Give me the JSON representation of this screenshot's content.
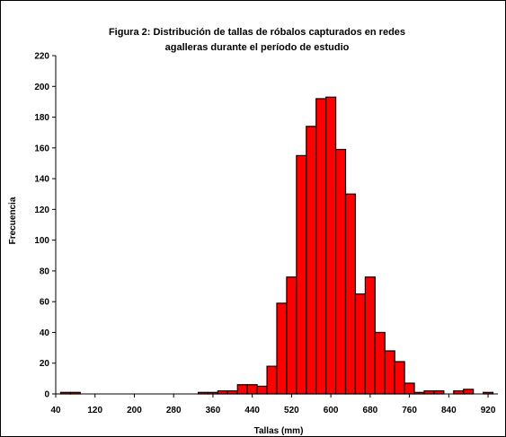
{
  "chart_data": {
    "type": "bar",
    "title_lines": [
      "Figura 2: Distribución de tallas de róbalos capturados en redes",
      "agalleras durante el período de estudio"
    ],
    "xlabel": "Tallas (mm)",
    "ylabel": "Frecuencia",
    "ylim": [
      0,
      220
    ],
    "yticks": [
      0,
      20,
      40,
      60,
      80,
      100,
      120,
      140,
      160,
      180,
      200,
      220
    ],
    "xticks": [
      40,
      120,
      200,
      280,
      360,
      440,
      520,
      600,
      680,
      760,
      840,
      920
    ],
    "bin_width": 20,
    "xlim": [
      40,
      940
    ],
    "bar_color": "#ff0000",
    "grid": false,
    "legend": "none",
    "bins": [
      {
        "x": 60,
        "value": 1
      },
      {
        "x": 80,
        "value": 1
      },
      {
        "x": 340,
        "value": 1
      },
      {
        "x": 360,
        "value": 1
      },
      {
        "x": 380,
        "value": 2
      },
      {
        "x": 400,
        "value": 2
      },
      {
        "x": 420,
        "value": 6
      },
      {
        "x": 440,
        "value": 6
      },
      {
        "x": 460,
        "value": 5
      },
      {
        "x": 480,
        "value": 18
      },
      {
        "x": 500,
        "value": 59
      },
      {
        "x": 520,
        "value": 76
      },
      {
        "x": 540,
        "value": 155
      },
      {
        "x": 560,
        "value": 174
      },
      {
        "x": 580,
        "value": 192
      },
      {
        "x": 600,
        "value": 193
      },
      {
        "x": 620,
        "value": 159
      },
      {
        "x": 640,
        "value": 130
      },
      {
        "x": 660,
        "value": 65
      },
      {
        "x": 680,
        "value": 76
      },
      {
        "x": 700,
        "value": 40
      },
      {
        "x": 720,
        "value": 28
      },
      {
        "x": 740,
        "value": 21
      },
      {
        "x": 760,
        "value": 7
      },
      {
        "x": 780,
        "value": 1
      },
      {
        "x": 800,
        "value": 2
      },
      {
        "x": 820,
        "value": 2
      },
      {
        "x": 860,
        "value": 2
      },
      {
        "x": 880,
        "value": 3
      },
      {
        "x": 920,
        "value": 1
      }
    ]
  }
}
